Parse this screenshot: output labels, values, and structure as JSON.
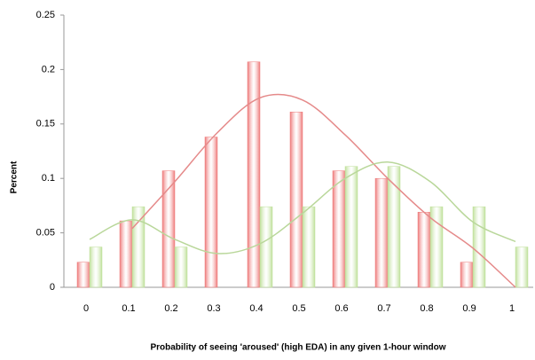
{
  "chart_data": {
    "type": "bar",
    "x_label": "Probability of seeing 'aroused' (high EDA) in any given 1-hour window",
    "y_label": "Percent",
    "categories": [
      "0",
      "0.1",
      "0.2",
      "0.3",
      "0.4",
      "0.5",
      "0.6",
      "0.7",
      "0.8",
      "0.9",
      "1"
    ],
    "series": [
      {
        "color": "#ee7a7a",
        "values": [
          0.023,
          0.061,
          0.107,
          0.138,
          0.207,
          0.161,
          0.107,
          0.1,
          0.069,
          0.023,
          0
        ]
      },
      {
        "color": "#bfe09a",
        "values": [
          0.037,
          0.074,
          0.037,
          0,
          0.074,
          0.074,
          0.111,
          0.111,
          0.074,
          0.074,
          0.037
        ]
      }
    ],
    "trendlines": [
      {
        "color": "#e58a8a",
        "values": [
          null,
          0.054,
          0.097,
          0.142,
          0.174,
          0.172,
          0.14,
          0.1,
          0.064,
          0.036,
          0
        ]
      },
      {
        "color": "#b9d79a",
        "values": [
          0.044,
          0.062,
          0.044,
          0.031,
          0.04,
          0.068,
          0.1,
          0.115,
          0.097,
          0.06,
          0.042
        ]
      }
    ],
    "ylim": [
      0,
      0.25
    ],
    "yticks": [
      0,
      0.05,
      0.1,
      0.15,
      0.2,
      0.25
    ],
    "grid": false
  }
}
